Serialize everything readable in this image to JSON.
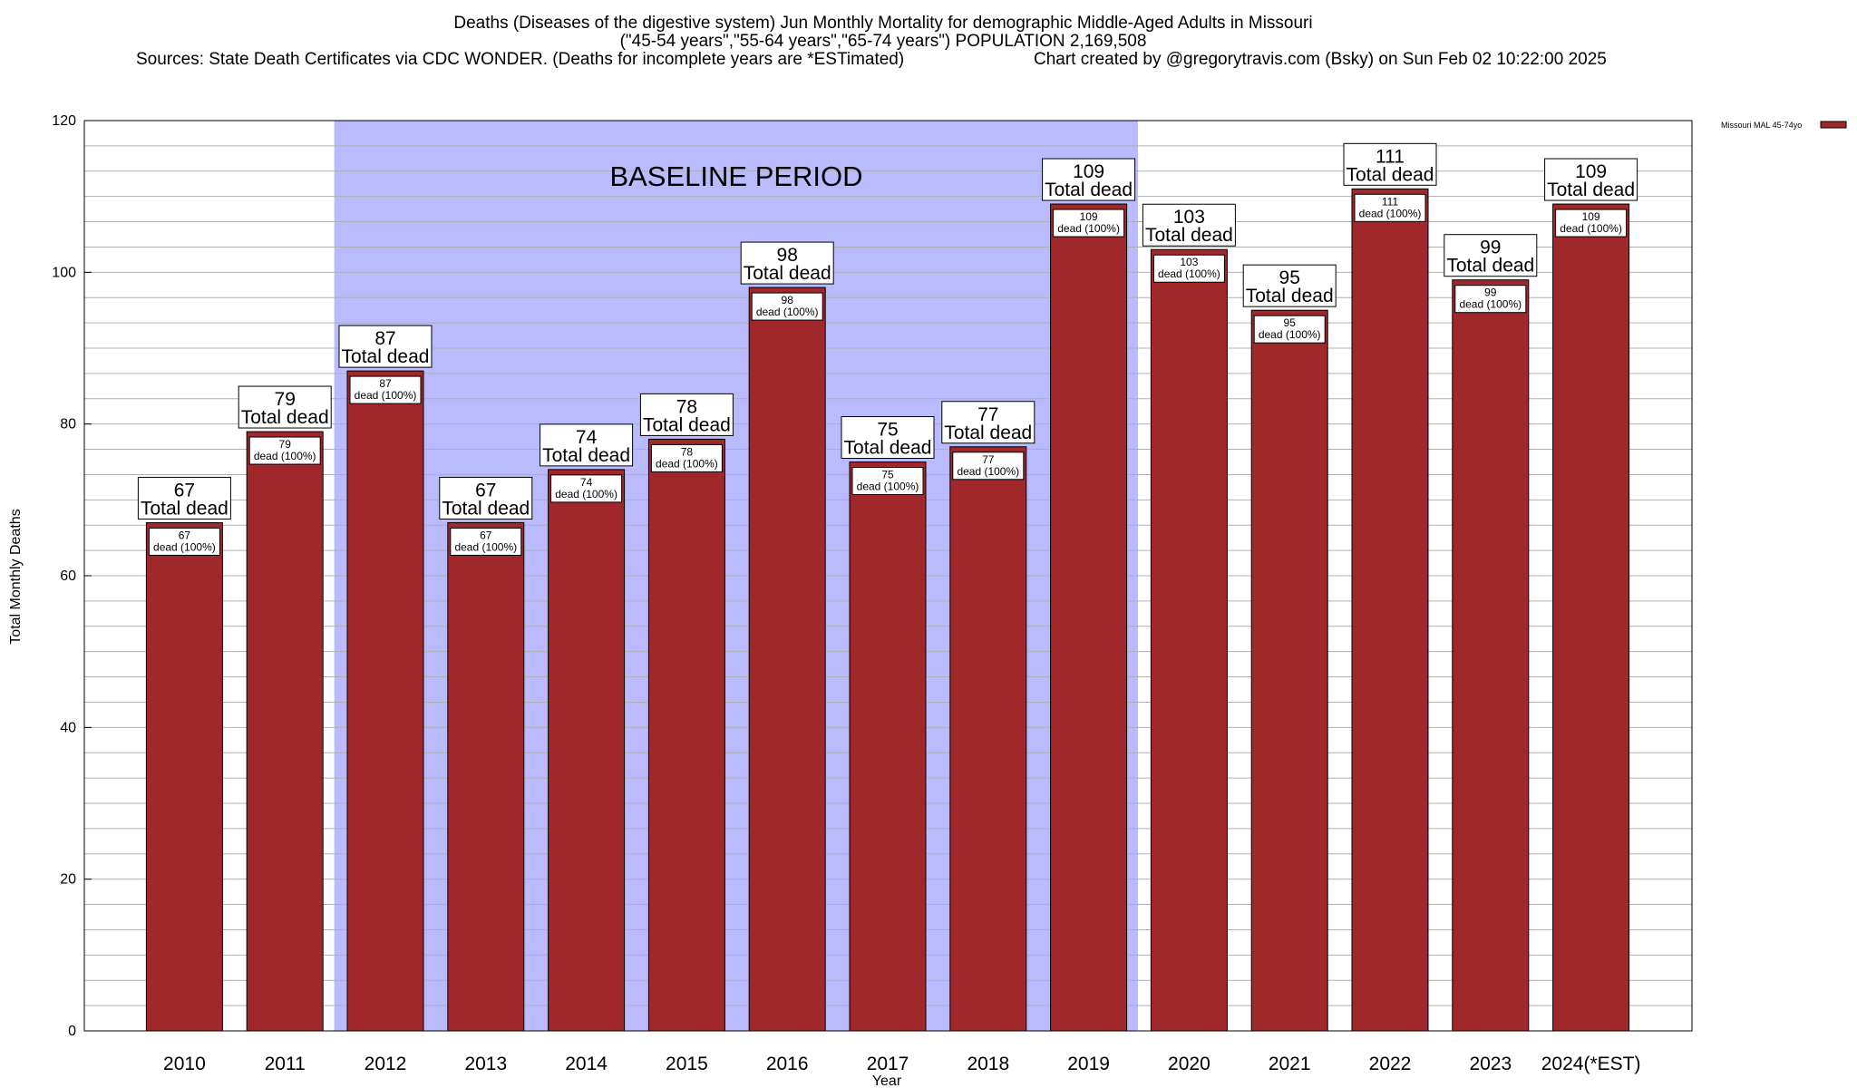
{
  "chart_data": {
    "type": "bar",
    "title_lines": [
      "Deaths (Diseases of the digestive system) Jun Monthly Mortality for demographic Middle-Aged Adults in Missouri",
      "(\"45-54 years\",\"55-64 years\",\"65-74 years\") POPULATION 2,169,508"
    ],
    "sources": "Sources: State Death Certificates via CDC WONDER. (Deaths for incomplete years are *ESTimated)",
    "credit": "Chart created by @gregorytravis.com (Bsky) on Sun Feb 02 10:22:00 2025",
    "categories": [
      "2010",
      "2011",
      "2012",
      "2013",
      "2014",
      "2015",
      "2016",
      "2017",
      "2018",
      "2019",
      "2020",
      "2021",
      "2022",
      "2023",
      "2024(*EST)"
    ],
    "series": [
      {
        "name": "Missouri MAL 45-74yo",
        "values": [
          67,
          79,
          87,
          67,
          74,
          78,
          98,
          75,
          77,
          109,
          103,
          95,
          111,
          99,
          109
        ]
      }
    ],
    "inner_labels": [
      "dead (100%)",
      "dead (100%)",
      "dead (100%)",
      "dead (100%)",
      "dead (100%)",
      "dead (100%)",
      "dead (100%)",
      "dead (100%)",
      "dead (100%)",
      "dead (100%)",
      "dead (100%)",
      "dead (100%)",
      "dead (100%)",
      "dead (100%)",
      "dead (100%)"
    ],
    "total_label": "Total dead",
    "xlabel": "Year",
    "ylabel": "Total Monthly Deaths",
    "ylim": [
      0,
      120
    ],
    "yticks": [
      0,
      20,
      40,
      60,
      80,
      100,
      120
    ],
    "baseline": {
      "label": "BASELINE PERIOD",
      "start": "2012",
      "end": "2019"
    },
    "legend_position": "top-right",
    "grid": true,
    "colors": {
      "bar": "#a0282a",
      "baseline": "#babaff",
      "grid": "#b0b0b0"
    }
  }
}
